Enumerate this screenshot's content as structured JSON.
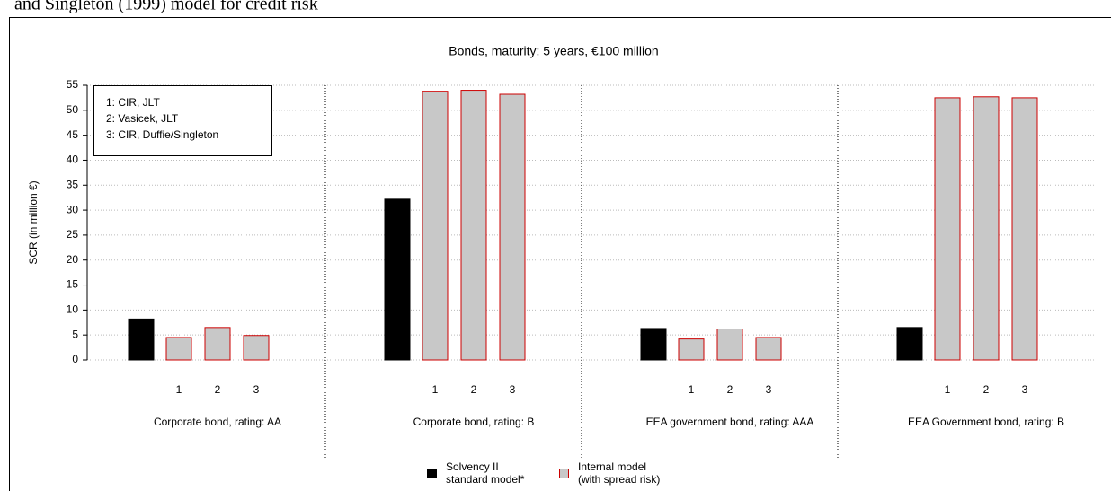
{
  "chart_data": {
    "type": "grouped_bar",
    "caption": "and Singleton (1999) model for credit risk",
    "title": "Bonds, maturity: 5 years, €100 million",
    "ylabel": "SCR (in million €)",
    "categories": [
      "Corporate bond, rating: AA",
      "Corporate bond, rating: B",
      "EEA government bond, rating: AAA",
      "EEA Government bond, rating: B"
    ],
    "models": [
      "1",
      "2",
      "3"
    ],
    "annotation": [
      "1: CIR, JLT",
      "2: Vasicek, JLT",
      "3: CIR, Duffie/Singleton"
    ],
    "series": [
      {
        "name": "Solvency II standard model*",
        "color": "#000000",
        "edgecolor": "#000000",
        "values": [
          8.2,
          32.2,
          6.3,
          6.5
        ]
      },
      {
        "name": "Internal model (with spread risk)",
        "color": "#c8c8c8",
        "edgecolor": "#cc0000",
        "values": [
          [
            4.5,
            6.5,
            4.9
          ],
          [
            53.8,
            54.0,
            53.2
          ],
          [
            4.2,
            6.2,
            4.5
          ],
          [
            52.5,
            52.7,
            52.5
          ]
        ]
      }
    ],
    "ylim": [
      0,
      55
    ],
    "yticks": [
      0,
      5,
      10,
      15,
      20,
      25,
      30,
      35,
      40,
      45,
      50,
      55
    ],
    "grid": true
  }
}
